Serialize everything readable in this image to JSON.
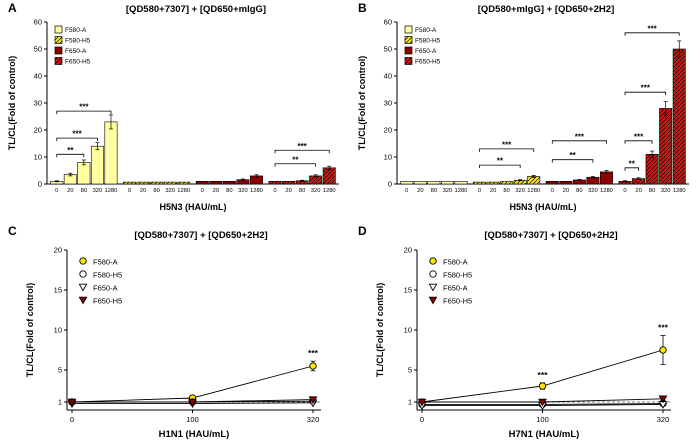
{
  "figure": {
    "background": "#ffffff"
  },
  "chart_data": [
    {
      "label": "A",
      "type": "bar",
      "title": "[QD580+7307] + [QD650+mIgG]",
      "xlabel": "H5N3 (HAU/mL)",
      "ylabel": "TL/CL(Fold of control)",
      "ylim": [
        0,
        60
      ],
      "yticks": [
        0,
        10,
        20,
        30,
        40,
        50,
        60
      ],
      "categories": [
        "0",
        "20",
        "80",
        "320",
        "1280"
      ],
      "legend_position": "top-left",
      "series": [
        {
          "name": "F580-A",
          "color": "#ffffa0",
          "hatch": false,
          "values": [
            1,
            3.5,
            8,
            14,
            23
          ],
          "errors": [
            0.2,
            0.5,
            0.9,
            1.3,
            2.6
          ]
        },
        {
          "name": "F580-H5",
          "color": "#ffee00",
          "hatch": true,
          "values": [
            0.7,
            0.7,
            0.7,
            0.7,
            0.7
          ],
          "errors": [
            0.1,
            0.1,
            0.1,
            0.1,
            0.1
          ]
        },
        {
          "name": "F650-A",
          "color": "#8f0000",
          "hatch": false,
          "values": [
            1,
            1,
            1,
            1.6,
            3
          ],
          "errors": [
            0.1,
            0.1,
            0.1,
            0.25,
            0.4
          ]
        },
        {
          "name": "F650-H5",
          "color": "#dd1111",
          "hatch": true,
          "values": [
            1,
            1,
            1.2,
            3,
            6
          ],
          "errors": [
            0.1,
            0.1,
            0.2,
            0.4,
            0.6
          ]
        }
      ],
      "brackets": [
        {
          "cluster": 0,
          "from": 0,
          "to": 2,
          "y": 11,
          "label": "**"
        },
        {
          "cluster": 0,
          "from": 0,
          "to": 3,
          "y": 17,
          "label": "***"
        },
        {
          "cluster": 0,
          "from": 0,
          "to": 4,
          "y": 27,
          "label": "***"
        },
        {
          "cluster": 3,
          "from": 0,
          "to": 3,
          "y": 7.5,
          "label": "**"
        },
        {
          "cluster": 3,
          "from": 0,
          "to": 4,
          "y": 12.5,
          "label": "***"
        }
      ]
    },
    {
      "label": "B",
      "type": "bar",
      "title": "[QD580+mIgG] + [QD650+2H2]",
      "xlabel": "H5N3 (HAU/mL)",
      "ylabel": "TL/CL(Fold of control)",
      "ylim": [
        0,
        60
      ],
      "yticks": [
        0,
        10,
        20,
        30,
        40,
        50,
        60
      ],
      "categories": [
        "0",
        "20",
        "80",
        "320",
        "1280"
      ],
      "legend_position": "top-left",
      "series": [
        {
          "name": "F580-A",
          "color": "#ffffa0",
          "hatch": false,
          "values": [
            1,
            1,
            1,
            1,
            1
          ],
          "errors": [
            0.1,
            0.1,
            0.1,
            0.1,
            0.1
          ]
        },
        {
          "name": "F580-H5",
          "color": "#ffee00",
          "hatch": true,
          "values": [
            0.7,
            0.7,
            0.9,
            1.4,
            2.8
          ],
          "errors": [
            0.1,
            0.1,
            0.1,
            0.2,
            0.4
          ]
        },
        {
          "name": "F650-A",
          "color": "#8f0000",
          "hatch": false,
          "values": [
            1,
            1,
            1.5,
            2.5,
            4.5
          ],
          "errors": [
            0.1,
            0.1,
            0.2,
            0.3,
            0.5
          ]
        },
        {
          "name": "F650-H5",
          "color": "#dd1111",
          "hatch": true,
          "values": [
            1,
            2,
            11,
            28,
            50
          ],
          "errors": [
            0.2,
            0.3,
            1.2,
            2.5,
            3
          ]
        }
      ],
      "brackets": [
        {
          "cluster": 1,
          "from": 0,
          "to": 3,
          "y": 7,
          "label": "**"
        },
        {
          "cluster": 1,
          "from": 0,
          "to": 4,
          "y": 13,
          "label": "***"
        },
        {
          "cluster": 2,
          "from": 0,
          "to": 3,
          "y": 9,
          "label": "**"
        },
        {
          "cluster": 2,
          "from": 0,
          "to": 4,
          "y": 16,
          "label": "***"
        },
        {
          "cluster": 3,
          "from": 0,
          "to": 1,
          "y": 6,
          "label": "**"
        },
        {
          "cluster": 3,
          "from": 0,
          "to": 2,
          "y": 16,
          "label": "***"
        },
        {
          "cluster": 3,
          "from": 0,
          "to": 3,
          "y": 34,
          "label": "***"
        },
        {
          "cluster": 3,
          "from": 0,
          "to": 4,
          "y": 56,
          "label": "***"
        }
      ]
    },
    {
      "label": "C",
      "type": "line",
      "title": "[QD580+7307] + [QD650+2H2]",
      "xlabel": "H1N1 (HAU/mL)",
      "ylabel": "TL/CL(Fold of control)",
      "ylim": [
        0,
        20
      ],
      "yticks": [
        1,
        5,
        10,
        15,
        20
      ],
      "baseline": 1,
      "x": [
        "0",
        "100",
        "320"
      ],
      "legend_position": "top-left",
      "series": [
        {
          "name": "F580-A",
          "marker": "circle",
          "fill": "#ffe800",
          "values": [
            1,
            1.5,
            5.5
          ],
          "errors": [
            0.1,
            0.3,
            0.6
          ]
        },
        {
          "name": "F580-H5",
          "marker": "circle-open",
          "fill": "#ffffff",
          "values": [
            1,
            1,
            1.1
          ],
          "errors": [
            0.1,
            0.1,
            0.1
          ]
        },
        {
          "name": "F650-A",
          "marker": "triangle-open",
          "fill": "#ffffff",
          "values": [
            0.8,
            0.8,
            0.9
          ],
          "errors": [
            0.1,
            0.1,
            0.1
          ]
        },
        {
          "name": "F650-H5",
          "marker": "triangle",
          "fill": "#8b0000",
          "values": [
            1,
            1,
            1.3
          ],
          "errors": [
            0.1,
            0.1,
            0.2
          ]
        }
      ],
      "stars": [
        {
          "series": 0,
          "point": 2,
          "label": "***"
        }
      ]
    },
    {
      "label": "D",
      "type": "line",
      "title": "[QD580+7307] + [QD650+2H2]",
      "xlabel": "H7N1 (HAU/mL)",
      "ylabel": "TL/CL(Fold of control)",
      "ylim": [
        0,
        20
      ],
      "yticks": [
        1,
        5,
        10,
        15,
        20
      ],
      "baseline": 1,
      "x": [
        "0",
        "100",
        "320"
      ],
      "legend_position": "top-left",
      "series": [
        {
          "name": "F580-A",
          "marker": "circle",
          "fill": "#ffe800",
          "values": [
            1,
            3,
            7.5
          ],
          "errors": [
            0.1,
            0.4,
            1.8
          ]
        },
        {
          "name": "F580-H5",
          "marker": "circle-open",
          "fill": "#ffffff",
          "values": [
            0.7,
            0.7,
            0.8
          ],
          "errors": [
            0.1,
            0.1,
            0.1
          ]
        },
        {
          "name": "F650-A",
          "marker": "triangle-open",
          "fill": "#ffffff",
          "values": [
            0.55,
            0.55,
            0.7
          ],
          "errors": [
            0.1,
            0.1,
            0.1
          ]
        },
        {
          "name": "F650-H5",
          "marker": "triangle",
          "fill": "#8b0000",
          "values": [
            1,
            1,
            1.4
          ],
          "errors": [
            0.1,
            0.1,
            0.2
          ]
        }
      ],
      "stars": [
        {
          "series": 0,
          "point": 1,
          "label": "***"
        },
        {
          "series": 0,
          "point": 2,
          "label": "***"
        }
      ]
    }
  ]
}
